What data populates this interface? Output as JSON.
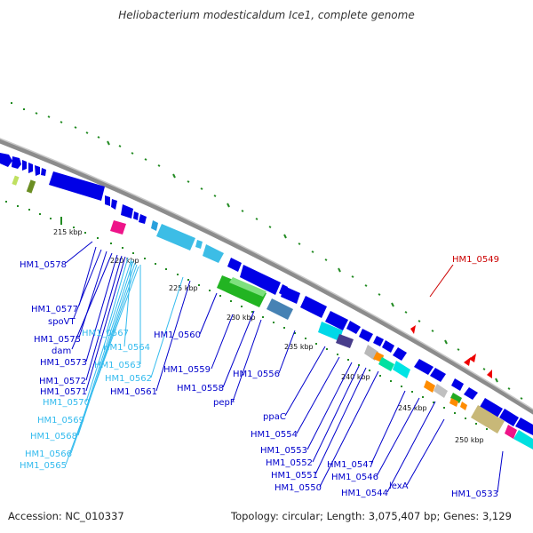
{
  "title": "Heliobacterium modesticaldum Ice1, complete genome",
  "footer": {
    "accession": "Accession: NC_010337",
    "summary": "Topology: circular; Length: 3,075,407 bp; Genes: 3,129"
  },
  "kbp_labels": [
    "215 kbp",
    "220 kbp",
    "225 kbp",
    "230 kbp",
    "235 kbp",
    "240 kbp",
    "245 kbp",
    "250 kbp"
  ],
  "gene_labels": [
    {
      "text": "HM1_0578",
      "color": "#0000cc"
    },
    {
      "text": "HM1_0577",
      "color": "#0000cc"
    },
    {
      "text": "spoVT",
      "color": "#0000cc"
    },
    {
      "text": "HM1_0575",
      "color": "#0000cc"
    },
    {
      "text": "dam",
      "color": "#0000cc"
    },
    {
      "text": "HM1_0573",
      "color": "#0000cc"
    },
    {
      "text": "HM1_0572",
      "color": "#0000cc"
    },
    {
      "text": "HM1_0571",
      "color": "#0000cc"
    },
    {
      "text": "HM1_0570",
      "color": "#33bbee"
    },
    {
      "text": "HM1_0569",
      "color": "#33bbee"
    },
    {
      "text": "HM1_0568",
      "color": "#33bbee"
    },
    {
      "text": "HM1_0566",
      "color": "#33bbee"
    },
    {
      "text": "HM1_0565",
      "color": "#33bbee"
    },
    {
      "text": "HM1_0567",
      "color": "#33bbee"
    },
    {
      "text": "HM1_0564",
      "color": "#33bbee"
    },
    {
      "text": "HM1_0563",
      "color": "#33bbee"
    },
    {
      "text": "HM1_0562",
      "color": "#33bbee"
    },
    {
      "text": "HM1_0561",
      "color": "#0000cc"
    },
    {
      "text": "HM1_0560",
      "color": "#0000cc"
    },
    {
      "text": "HM1_0559",
      "color": "#0000cc"
    },
    {
      "text": "HM1_0558",
      "color": "#0000cc"
    },
    {
      "text": "pepF",
      "color": "#0000cc"
    },
    {
      "text": "HM1_0556",
      "color": "#0000cc"
    },
    {
      "text": "ppaC",
      "color": "#0000cc"
    },
    {
      "text": "HM1_0554",
      "color": "#0000cc"
    },
    {
      "text": "HM1_0553",
      "color": "#0000cc"
    },
    {
      "text": "HM1_0552",
      "color": "#0000cc"
    },
    {
      "text": "HM1_0551",
      "color": "#0000cc"
    },
    {
      "text": "HM1_0550",
      "color": "#0000cc"
    },
    {
      "text": "HM1_0547",
      "color": "#0000cc"
    },
    {
      "text": "HM1_0546",
      "color": "#0000cc"
    },
    {
      "text": "HM1_0544",
      "color": "#0000cc"
    },
    {
      "text": "lexA",
      "color": "#0000cc"
    },
    {
      "text": "HM1_0533",
      "color": "#0000cc"
    },
    {
      "text": "HM1_0549",
      "color": "#cc0000"
    }
  ]
}
